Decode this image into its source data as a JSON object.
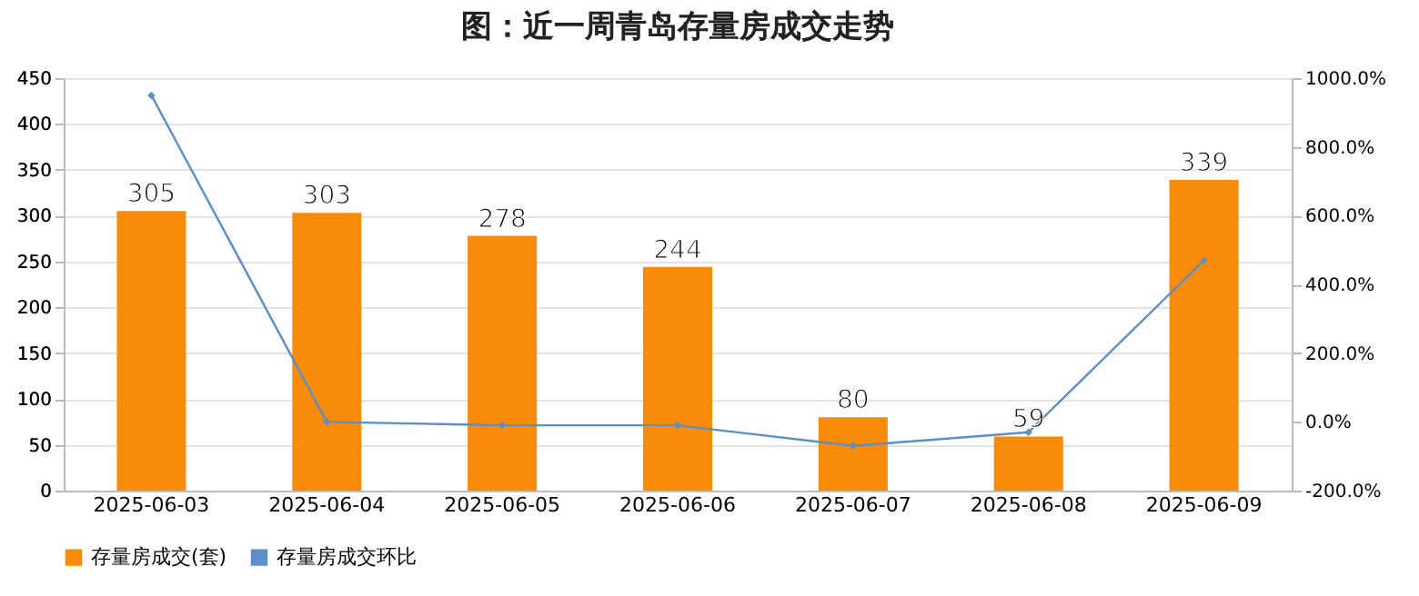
{
  "chart_data": {
    "type": "bar",
    "title": "图：近一周青岛存量房成交走势",
    "categories": [
      "2025-06-03",
      "2025-06-04",
      "2025-06-05",
      "2025-06-06",
      "2025-06-07",
      "2025-06-08",
      "2025-06-09"
    ],
    "series": [
      {
        "name": "存量房成交(套)",
        "color": "#f98b0a",
        "values": [
          305,
          303,
          278,
          244,
          80,
          59,
          339
        ],
        "value_labels": [
          "305",
          "303",
          "278",
          "244",
          "80",
          "59",
          "339"
        ]
      },
      {
        "name": "存量房成交环比",
        "type": "line",
        "axis": "y2",
        "color": "#5b8fc7",
        "marker": "diamond",
        "values": [
          950,
          0,
          -10,
          -10,
          -70,
          -30,
          470
        ]
      }
    ],
    "ylim": [
      0,
      450
    ],
    "yticks": [
      0,
      50,
      100,
      150,
      200,
      250,
      300,
      350,
      400,
      450
    ],
    "y2lim": [
      -200,
      1000
    ],
    "y2ticks": [
      {
        "value": -200,
        "label": "-200.0%"
      },
      {
        "value": 0,
        "label": "0.0%"
      },
      {
        "value": 200,
        "label": "200.0%"
      },
      {
        "value": 400,
        "label": "400.0%"
      },
      {
        "value": 600,
        "label": "600.0%"
      },
      {
        "value": 800,
        "label": "800.0%"
      },
      {
        "value": 1000,
        "label": "1000.0%"
      }
    ],
    "grid": "y",
    "legend": "bottom"
  }
}
